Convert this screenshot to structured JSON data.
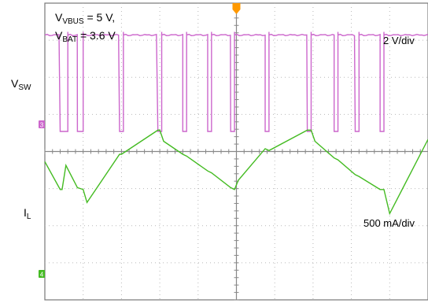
{
  "conditions": {
    "vbus": {
      "label": "V",
      "sub": "VBUS",
      "value": " = 5 V,"
    },
    "vbat": {
      "label": "V",
      "sub": "BAT",
      "value": " = 3.6 V"
    }
  },
  "channels": {
    "sw": {
      "label": "V",
      "sub": "SW",
      "scale": "2 V/div",
      "marker": "3",
      "color": "#cc66cc"
    },
    "il": {
      "label": "I",
      "sub": "L",
      "scale": "500 mA/div",
      "marker": "4",
      "color": "#44bb22"
    }
  },
  "trigger_marker": {
    "icon": "trigger-arrow-icon",
    "color": "#ff9900"
  },
  "chart_data": {
    "type": "line",
    "grid": true,
    "divisions": {
      "x": 10,
      "y": 8
    },
    "series": [
      {
        "name": "V_SW",
        "unit": "V/div: 2",
        "high_level_div": 2.6,
        "low_level_div": 0.0,
        "low_intervals_div": [
          [
            0.4,
            0.6
          ],
          [
            0.85,
            1.0
          ],
          [
            1.95,
            2.05
          ],
          [
            2.95,
            3.05
          ],
          [
            3.6,
            3.7
          ],
          [
            4.25,
            4.35
          ],
          [
            4.85,
            4.95
          ],
          [
            5.75,
            5.85
          ],
          [
            6.85,
            6.95
          ],
          [
            7.55,
            7.65
          ],
          [
            8.1,
            8.2
          ],
          [
            8.75,
            8.85
          ]
        ]
      },
      {
        "name": "I_L",
        "unit": "mA/div: 500",
        "points_div": [
          [
            0.0,
            4.2
          ],
          [
            0.4,
            4.95
          ],
          [
            0.45,
            4.95
          ],
          [
            0.55,
            4.3
          ],
          [
            0.85,
            4.9
          ],
          [
            1.0,
            4.95
          ],
          [
            1.1,
            5.3
          ],
          [
            1.95,
            4.0
          ],
          [
            2.0,
            4.0
          ],
          [
            2.95,
            3.35
          ],
          [
            3.0,
            3.35
          ],
          [
            3.1,
            3.65
          ],
          [
            3.6,
            4.0
          ],
          [
            3.7,
            4.05
          ],
          [
            4.25,
            4.45
          ],
          [
            4.35,
            4.5
          ],
          [
            4.85,
            4.9
          ],
          [
            4.95,
            4.95
          ],
          [
            5.05,
            4.7
          ],
          [
            5.75,
            3.85
          ],
          [
            5.85,
            3.9
          ],
          [
            6.85,
            3.35
          ],
          [
            6.95,
            3.35
          ],
          [
            7.05,
            3.65
          ],
          [
            7.55,
            4.1
          ],
          [
            7.65,
            4.15
          ],
          [
            8.1,
            4.55
          ],
          [
            8.2,
            4.6
          ],
          [
            8.75,
            4.95
          ],
          [
            8.85,
            4.95
          ],
          [
            9.0,
            5.6
          ],
          [
            10.0,
            3.6
          ]
        ]
      }
    ]
  }
}
